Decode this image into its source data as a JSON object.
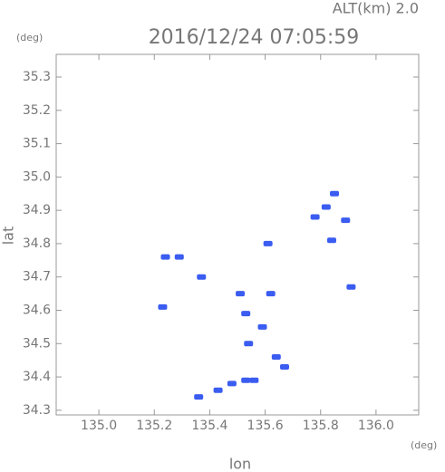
{
  "chart_data": {
    "type": "scatter",
    "title": "2016/12/24 07:05:59",
    "annotation": "ALT(km) 2.0",
    "x_label": "lon",
    "y_label": "lat",
    "x_unit": "(deg)",
    "y_unit": "(deg)",
    "color": "#3a5cf0",
    "x": [
      135.85,
      135.78,
      135.82,
      135.89,
      135.84,
      135.61,
      135.24,
      135.29,
      135.37,
      135.91,
      135.51,
      135.62,
      135.53,
      135.54,
      135.59,
      135.64,
      135.67,
      135.53,
      135.48,
      135.43,
      135.36,
      135.23,
      135.56
    ],
    "y": [
      34.95,
      34.88,
      34.91,
      34.87,
      34.81,
      34.8,
      34.76,
      34.76,
      34.7,
      34.67,
      34.65,
      34.65,
      34.59,
      34.5,
      34.55,
      34.46,
      34.43,
      34.39,
      34.38,
      34.36,
      34.34,
      34.61,
      34.39
    ],
    "xlim": [
      134.846,
      136.154
    ],
    "ylim": [
      34.286,
      35.368
    ],
    "xticks": [
      {
        "value": 135.0,
        "label": "135.0"
      },
      135.2,
      135.4,
      135.6,
      135.8,
      {
        "value": 136.0,
        "label": "136.0"
      }
    ],
    "yticks": [
      34.3,
      34.4,
      34.5,
      34.6,
      34.7,
      34.8,
      34.9,
      {
        "value": 35.0,
        "label": "35.0"
      },
      35.1,
      35.2,
      35.3
    ]
  }
}
